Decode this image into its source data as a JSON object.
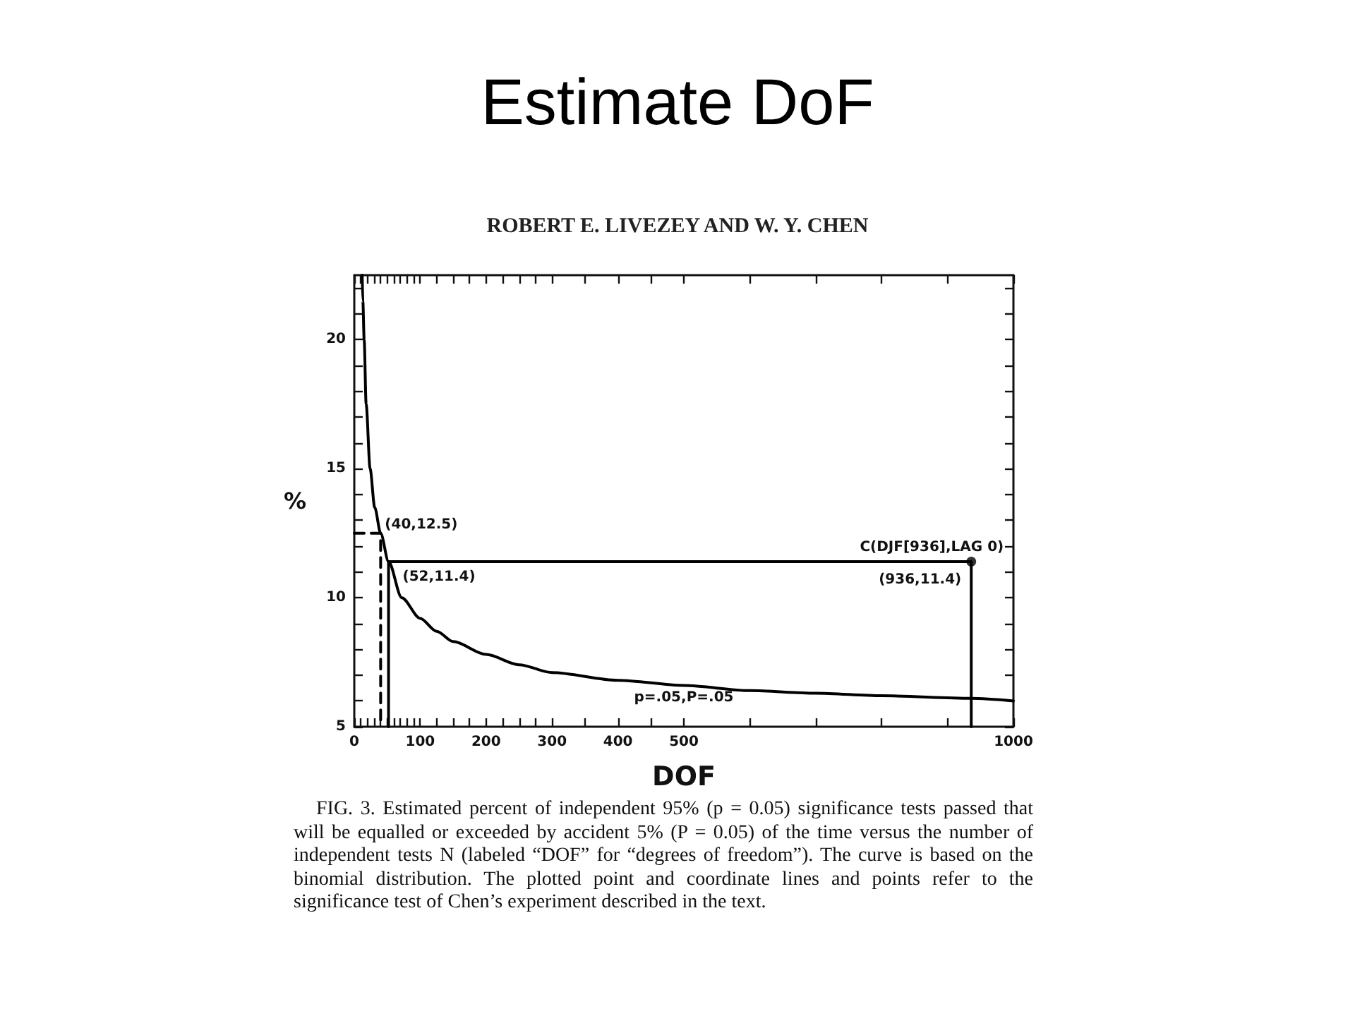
{
  "chart_data": {
    "type": "line",
    "title": "Estimate DoF",
    "subtitle": "ROBERT E. LIVEZEY AND W. Y. CHEN",
    "xlabel": "DOF",
    "ylabel": "%",
    "xlim": [
      0,
      1000
    ],
    "ylim": [
      5,
      22.5
    ],
    "xticks": [
      0,
      {
        "value": 10,
        "label": null
      },
      {
        "value": 20,
        "label": null
      },
      {
        "value": 30,
        "label": null
      },
      {
        "value": 40,
        "label": null
      },
      {
        "value": 50,
        "label": null
      },
      {
        "value": 60,
        "label": null
      },
      {
        "value": 70,
        "label": null
      },
      {
        "value": 80,
        "label": null
      },
      {
        "value": 90,
        "label": null
      },
      100,
      {
        "value": 125,
        "label": null
      },
      {
        "value": 150,
        "label": null
      },
      {
        "value": 175,
        "label": null
      },
      200,
      {
        "value": 225,
        "label": null
      },
      {
        "value": 250,
        "label": null
      },
      {
        "value": 275,
        "label": null
      },
      300,
      {
        "value": 350,
        "label": null
      },
      400,
      {
        "value": 450,
        "label": null
      },
      500,
      {
        "value": 600,
        "label": null
      },
      {
        "value": 700,
        "label": null
      },
      {
        "value": 800,
        "label": null
      },
      {
        "value": 900,
        "label": null
      },
      1000
    ],
    "yticks": [
      5,
      {
        "value": 6,
        "label": null
      },
      {
        "value": 7,
        "label": null
      },
      {
        "value": 8,
        "label": null
      },
      {
        "value": 9,
        "label": null
      },
      10,
      {
        "value": 11,
        "label": null
      },
      {
        "value": 12,
        "label": null
      },
      {
        "value": 13,
        "label": null
      },
      {
        "value": 14,
        "label": null
      },
      15,
      {
        "value": 16,
        "label": null
      },
      {
        "value": 17,
        "label": null
      },
      {
        "value": 18,
        "label": null
      },
      {
        "value": 19,
        "label": null
      },
      20,
      {
        "value": 21,
        "label": null
      },
      {
        "value": 22,
        "label": null
      }
    ],
    "grid": false,
    "legend": false,
    "marker": "none",
    "line_style": "solid",
    "series": [
      {
        "name": "p=.05,P=.05",
        "color": "#000000",
        "x": [
          12,
          13,
          15,
          18,
          24,
          31,
          40,
          52,
          72,
          100,
          125,
          150,
          200,
          250,
          300,
          400,
          500,
          600,
          700,
          800,
          936,
          1000
        ],
        "values": [
          22.5,
          21.5,
          20,
          17.5,
          15,
          13.5,
          12.5,
          11.4,
          10.0,
          9.2,
          8.7,
          8.3,
          7.8,
          7.4,
          7.1,
          6.8,
          6.6,
          6.4,
          6.3,
          6.2,
          6.1,
          6.0
        ]
      },
      {
        "color": "#000000",
        "line_style": "dashed",
        "x": [
          0,
          40,
          40
        ],
        "values": [
          12.5,
          12.5,
          5
        ]
      },
      {
        "color": "#000000",
        "x": [
          52,
          52,
          936,
          936
        ],
        "values": [
          5,
          11.4,
          11.4,
          5
        ]
      },
      {
        "type": "scatter",
        "color": "#000000",
        "marker": "circle",
        "x": [
          936
        ],
        "values": [
          11.4
        ]
      }
    ],
    "annotations": [
      {
        "text": "(40,12.5)",
        "x": 40,
        "y": 12.5
      },
      {
        "text": "(52,11.4)",
        "x": 52,
        "y": 11.4
      },
      {
        "text": "C(DJF[936],LAG 0)",
        "x": 936,
        "y": 11.4
      },
      {
        "text": "(936,11.4)",
        "x": 936,
        "y": 11.4
      },
      "FIG. 3. Estimated percent of independent 95% (p = 0.05) significance tests passed that will be equalled or exceeded by accident 5% (P = 0.05) of the time versus the number of independent tests N (labeled “DOF” for “degrees of freedom”). The curve is based on the binomial distribution. The plotted point and coordinate lines and points refer to the significance test of Chen’s experiment described in the text."
    ]
  }
}
